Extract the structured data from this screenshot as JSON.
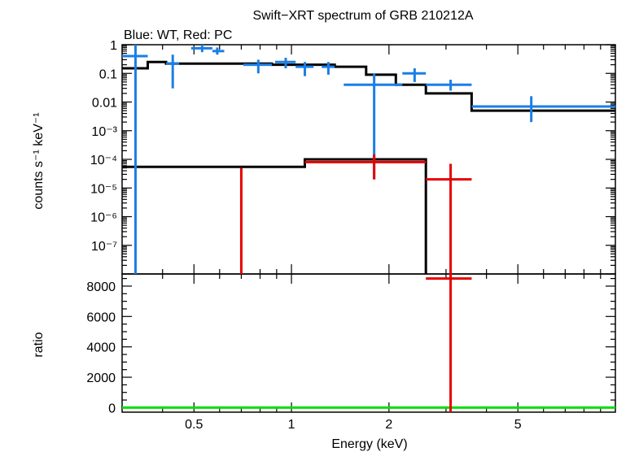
{
  "chart_data": [
    {
      "type": "scatter",
      "panel": "spectrum",
      "title": "Swift−XRT spectrum of GRB 210212A",
      "subtitle": "Blue: WT, Red: PC",
      "ylabel": "counts s⁻¹ keV⁻¹",
      "xscale": "log",
      "yscale": "log",
      "xlim": [
        0.3,
        10
      ],
      "ylim": [
        1e-08,
        1
      ],
      "y_tick_labels": [
        "1",
        "0.1",
        "0.01",
        "10⁻³",
        "10⁻⁴",
        "10⁻⁵",
        "10⁻⁶",
        "10⁻⁷"
      ],
      "series": [
        {
          "color": "#1a7ee6",
          "points": [
            {
              "x": 0.33,
              "xlo": 0.3,
              "xhi": 0.36,
              "y": 0.4,
              "ylo": 1e-08,
              "yhi": 1.0
            },
            {
              "x": 0.43,
              "xlo": 0.41,
              "xhi": 0.45,
              "y": 0.22,
              "ylo": 0.03,
              "yhi": 0.45
            },
            {
              "x": 0.53,
              "xlo": 0.49,
              "xhi": 0.57,
              "y": 0.75,
              "ylo": 0.55,
              "yhi": 1.0
            },
            {
              "x": 0.59,
              "xlo": 0.57,
              "xhi": 0.62,
              "y": 0.6,
              "ylo": 0.45,
              "yhi": 0.8
            },
            {
              "x": 0.79,
              "xlo": 0.71,
              "xhi": 0.87,
              "y": 0.2,
              "ylo": 0.1,
              "yhi": 0.3
            },
            {
              "x": 0.96,
              "xlo": 0.89,
              "xhi": 1.03,
              "y": 0.25,
              "ylo": 0.15,
              "yhi": 0.35
            },
            {
              "x": 1.1,
              "xlo": 1.03,
              "xhi": 1.17,
              "y": 0.17,
              "ylo": 0.08,
              "yhi": 0.25
            },
            {
              "x": 1.3,
              "xlo": 1.24,
              "xhi": 1.36,
              "y": 0.17,
              "ylo": 0.09,
              "yhi": 0.25
            },
            {
              "x": 1.8,
              "xlo": 1.45,
              "xhi": 2.2,
              "y": 0.04,
              "ylo": 2e-05,
              "yhi": 0.1
            },
            {
              "x": 2.4,
              "xlo": 2.2,
              "xhi": 2.6,
              "y": 0.1,
              "ylo": 0.05,
              "yhi": 0.15
            },
            {
              "x": 3.1,
              "xlo": 2.6,
              "xhi": 3.6,
              "y": 0.04,
              "ylo": 0.025,
              "yhi": 0.06
            },
            {
              "x": 5.5,
              "xlo": 3.6,
              "xhi": 10,
              "y": 0.007,
              "ylo": 0.002,
              "yhi": 0.016
            }
          ]
        },
        {
          "color": "#e60000",
          "points": [
            {
              "x": 0.7,
              "xlo": 0.7,
              "xhi": 0.7,
              "y": 1e-08,
              "ylo": 1e-08,
              "yhi": 5e-05
            },
            {
              "x": 1.8,
              "xlo": 1.1,
              "xhi": 2.6,
              "y": 8e-05,
              "ylo": 2e-05,
              "yhi": 0.00015
            },
            {
              "x": 3.1,
              "xlo": 2.6,
              "xhi": 3.6,
              "y": 2e-05,
              "ylo": 1e-08,
              "yhi": 7e-05
            }
          ]
        }
      ],
      "models": [
        {
          "color": "#000000",
          "edges": [
            0.3,
            0.36,
            0.41,
            0.87,
            1.36,
            1.7,
            2.1,
            2.6,
            3.6,
            10
          ],
          "values": [
            0.15,
            0.25,
            0.22,
            0.2,
            0.17,
            0.09,
            0.04,
            0.02,
            0.005
          ]
        },
        {
          "color": "#000000",
          "edges": [
            0.3,
            1.1,
            2.6
          ],
          "values": [
            5.5e-05,
            0.0001
          ],
          "drop_to": 1e-08
        }
      ]
    },
    {
      "type": "scatter",
      "panel": "ratio",
      "xlabel": "Energy (keV)",
      "ylabel": "ratio",
      "xscale": "log",
      "xlim": [
        0.3,
        10
      ],
      "ylim": [
        -300,
        8800
      ],
      "x_tick_labels": [
        "0.5",
        "1",
        "2",
        "5"
      ],
      "x_tick_values": [
        0.5,
        1,
        2,
        5
      ],
      "y_tick_labels": [
        "0",
        "2000",
        "4000",
        "6000",
        "8000"
      ],
      "y_tick_values": [
        0,
        2000,
        4000,
        6000,
        8000
      ],
      "reference_line": {
        "y": 0,
        "color": "#00e000"
      },
      "series": [
        {
          "color": "#e60000",
          "points": [
            {
              "x": 3.1,
              "xlo": 2.6,
              "xhi": 3.6,
              "y": 8500,
              "ylo": -300,
              "yhi": 8800
            }
          ]
        }
      ]
    }
  ]
}
